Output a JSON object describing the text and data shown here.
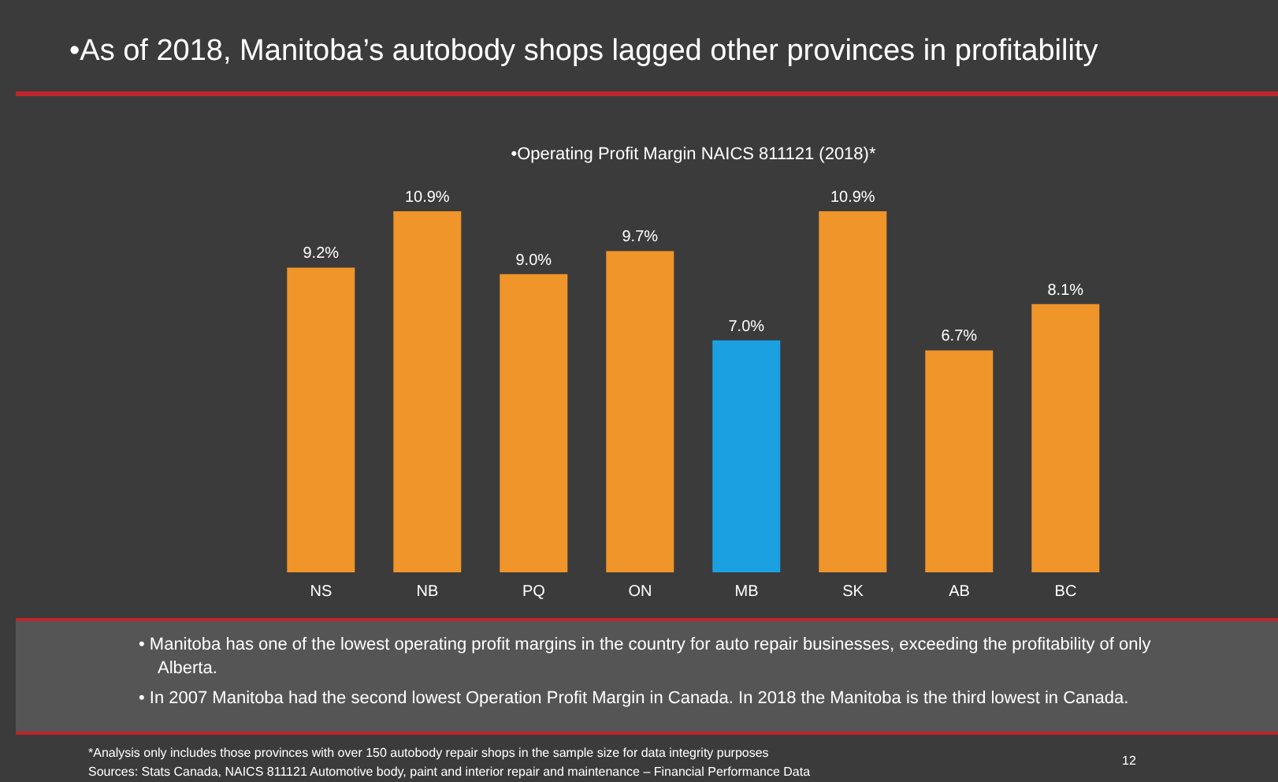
{
  "chart_data": {
    "type": "bar",
    "title": "•As of 2018, Manitoba’s autobody shops lagged other provinces in profitability",
    "subtitle": "•Operating Profit Margin NAICS 811121 (2018)*",
    "categories": [
      "NS",
      "NB",
      "PQ",
      "ON",
      "MB",
      "SK",
      "AB",
      "BC"
    ],
    "values": [
      9.2,
      10.9,
      9.0,
      9.7,
      7.0,
      10.9,
      6.7,
      8.1
    ],
    "colors": [
      "#f0952a",
      "#f0952a",
      "#f0952a",
      "#f0952a",
      "#1ba1e2",
      "#f0952a",
      "#f0952a",
      "#f0952a"
    ],
    "value_labels": [
      "9.2%",
      "10.9%",
      "9.0%",
      "9.7%",
      "7.0%",
      "10.9%",
      "6.7%",
      "8.1%"
    ],
    "grid": false,
    "legend": false,
    "annotations": [
      "• Manitoba has one of the lowest operating profit margins in the country for auto repair businesses, exceeding the profitability of only Alberta.",
      "• In 2007 Manitoba had the second lowest Operation Profit Margin in Canada. In 2018 the Manitoba is the third lowest in Canada.",
      "*Analysis only includes those provinces with over 150 autobody repair shops in the sample size for data integrity purposes",
      "Sources: Stats Canada, NAICS 811121 Automotive body, paint and interior repair and maintenance – Financial Performance Data",
      "12"
    ]
  }
}
